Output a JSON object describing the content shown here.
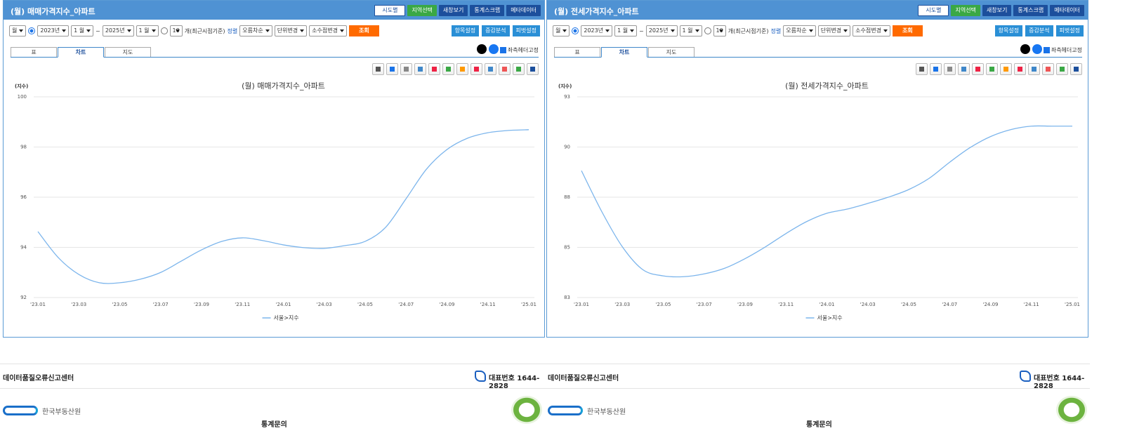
{
  "panels": [
    {
      "title": "(월) 매매가격지수_아파트",
      "buttons": [
        "시도별",
        "지역선택",
        "새창보기",
        "통계스크랩",
        "메타데이터"
      ],
      "controls": [
        "월",
        "2023년",
        "1 월",
        "~",
        "2025년",
        "1 월",
        "10",
        "개(최근시점기준)",
        "정렬",
        "오름차순",
        "단위변경",
        "소수점변경"
      ],
      "search": "조회",
      "side_buttons": [
        "항목설정",
        "증감분석",
        "피벗설정"
      ],
      "tabs": [
        "표",
        "차트",
        "지도"
      ],
      "freeze_header": "좌측헤더고정"
    },
    {
      "title": "(월) 전세가격지수_아파트",
      "buttons": [
        "시도별",
        "지역선택",
        "새창보기",
        "통계스크랩",
        "메타데이터"
      ],
      "controls": [
        "월",
        "2023년",
        "1 월",
        "~",
        "2025년",
        "1 월",
        "10",
        "개(최근시점기준)",
        "정렬",
        "오름차순",
        "단위변경",
        "소수점변경"
      ],
      "search": "조회",
      "side_buttons": [
        "항목설정",
        "증감분석",
        "피벗설정"
      ],
      "tabs": [
        "표",
        "차트",
        "지도"
      ],
      "freeze_header": "좌측헤더고정"
    }
  ],
  "footer": [
    {
      "report": "데이터품질오류신고센터",
      "phone": "대표번호 1644-2828",
      "org": "한국부동산원",
      "inquiry": "통계문의"
    },
    {
      "report": "데이터품질오류신고센터",
      "phone": "대표번호 1644-2828",
      "org": "한국부동산원",
      "inquiry": "통계문의"
    }
  ],
  "chart_data": [
    {
      "type": "line",
      "title": "(월) 매매가격지수_아파트",
      "y_label": "(지수)",
      "categories": [
        "'23.01",
        null,
        "'23.03",
        null,
        "'23.05",
        null,
        "'23.07",
        null,
        "'23.09",
        null,
        "'23.11",
        null,
        "'24.01",
        null,
        "'24.03",
        null,
        "'24.05",
        null,
        "'24.07",
        null,
        "'24.09",
        null,
        "'24.11",
        null,
        "'25.01"
      ],
      "series": [
        {
          "name": "서울>지수",
          "color": "#7cb5ec",
          "values": [
            94.63,
            93.59,
            92.92,
            92.59,
            92.59,
            92.73,
            93.0,
            93.45,
            93.9,
            94.24,
            94.38,
            94.27,
            94.1,
            93.99,
            93.96,
            94.07,
            94.24,
            94.8,
            95.94,
            97.12,
            97.9,
            98.35,
            98.57,
            98.66,
            98.69
          ]
        }
      ],
      "ylim": [
        92,
        100
      ],
      "yticks": [
        92,
        94,
        96,
        98,
        100
      ],
      "grid": true
    },
    {
      "type": "line",
      "title": "(월) 전세가격지수_아파트",
      "y_label": "(지수)",
      "categories": [
        "'23.01",
        null,
        "'23.03",
        null,
        "'23.05",
        null,
        "'23.07",
        null,
        "'23.09",
        null,
        "'23.11",
        null,
        "'24.01",
        null,
        "'24.03",
        null,
        "'24.05",
        null,
        "'24.07",
        null,
        "'24.09",
        null,
        "'24.11",
        null,
        "'25.01"
      ],
      "series": [
        {
          "name": "서울>지수",
          "color": "#7cb5ec",
          "values": [
            88.92,
            86.87,
            85.13,
            83.99,
            83.68,
            83.64,
            83.78,
            84.06,
            84.54,
            85.13,
            85.79,
            86.38,
            86.8,
            87.01,
            87.29,
            87.6,
            87.98,
            88.54,
            89.34,
            90.07,
            90.62,
            90.97,
            91.14,
            91.14,
            91.14
          ]
        }
      ],
      "ylim": [
        82.6,
        92.6
      ],
      "yticks": [
        {
          "value": 82.6,
          "label": "83"
        },
        {
          "value": 85.1,
          "label": "85"
        },
        {
          "value": 87.6,
          "label": "88"
        },
        {
          "value": 90.1,
          "label": "90"
        },
        {
          "value": 92.6,
          "label": "93"
        }
      ],
      "grid": true
    }
  ]
}
